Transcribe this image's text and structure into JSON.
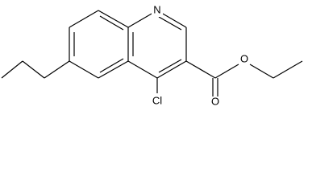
{
  "atoms": [
    {
      "label": "N"
    },
    {
      "label": "Cl"
    },
    {
      "label": "O"
    },
    {
      "label": "O"
    }
  ]
}
